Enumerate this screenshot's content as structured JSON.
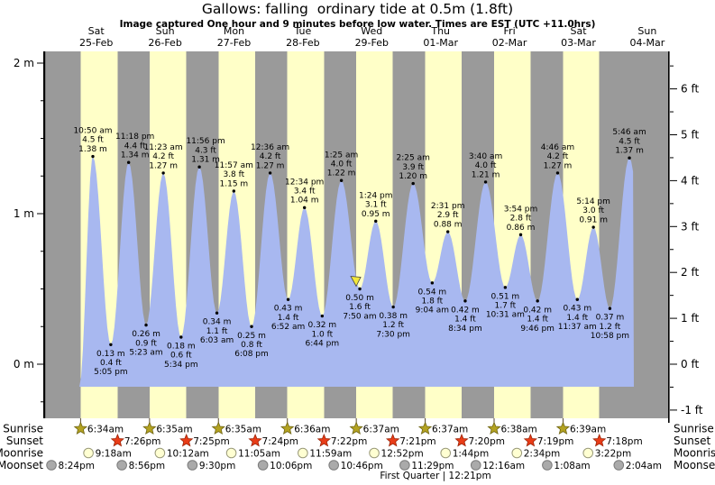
{
  "title": "Gallows: falling  ordinary tide at 0.5m (1.8ft)",
  "subtitle": "Image captured One hour and 9 minutes before low water. Times are EST (UTC +11.0hrs)",
  "chart_data": {
    "type": "area",
    "title": "Gallows: falling  ordinary tide at 0.5m (1.8ft)",
    "ylabel_left_unit": "m",
    "ylabel_right_unit": "ft",
    "y_axis_left_ticks": [
      "2 m",
      "1 m",
      "0 m"
    ],
    "y_axis_right_ticks": [
      "6 ft",
      "5 ft",
      "4 ft",
      "3 ft",
      "2 ft",
      "1 ft",
      "0 ft",
      "-1 ft"
    ],
    "ylim_m": [
      -0.35,
      2.08
    ],
    "days": [
      {
        "name": "Sat",
        "date": "25-Feb"
      },
      {
        "name": "Sun",
        "date": "26-Feb"
      },
      {
        "name": "Mon",
        "date": "27-Feb"
      },
      {
        "name": "Tue",
        "date": "28-Feb"
      },
      {
        "name": "Wed",
        "date": "29-Feb"
      },
      {
        "name": "Thu",
        "date": "01-Mar"
      },
      {
        "name": "Fri",
        "date": "02-Mar"
      },
      {
        "name": "Sat",
        "date": "03-Mar"
      },
      {
        "name": "Sun",
        "date": "04-Mar"
      }
    ],
    "tides": [
      {
        "day": 0,
        "type": "high",
        "time": "10:50 am",
        "ft": "4.5 ft",
        "m": "1.38 m"
      },
      {
        "day": 0,
        "type": "low",
        "m": "0.13 m",
        "ft": "0.4 ft",
        "time": "5:05 pm"
      },
      {
        "day": 0,
        "type": "high",
        "time": "11:18 pm",
        "ft": "4.4 ft",
        "m": "1.34 m"
      },
      {
        "day": 1,
        "type": "low",
        "m": "0.26 m",
        "ft": "0.9 ft",
        "time": "5:23 am"
      },
      {
        "day": 1,
        "type": "high",
        "time": "11:23 am",
        "ft": "4.2 ft",
        "m": "1.27 m"
      },
      {
        "day": 1,
        "type": "low",
        "m": "0.18 m",
        "ft": "0.6 ft",
        "time": "5:34 pm"
      },
      {
        "day": 1,
        "type": "high",
        "time": "11:56 pm",
        "ft": "4.3 ft",
        "m": "1.31 m"
      },
      {
        "day": 2,
        "type": "low",
        "m": "0.34 m",
        "ft": "1.1 ft",
        "time": "6:03 am"
      },
      {
        "day": 2,
        "type": "high",
        "time": "11:57 am",
        "ft": "3.8 ft",
        "m": "1.15 m"
      },
      {
        "day": 2,
        "type": "low",
        "m": "0.25 m",
        "ft": "0.8 ft",
        "time": "6:08 pm"
      },
      {
        "day": 3,
        "type": "high",
        "time": "12:36 am",
        "ft": "4.2 ft",
        "m": "1.27 m"
      },
      {
        "day": 3,
        "type": "low",
        "m": "0.43 m",
        "ft": "1.4 ft",
        "time": "6:52 am"
      },
      {
        "day": 3,
        "type": "high",
        "time": "12:34 pm",
        "ft": "3.4 ft",
        "m": "1.04 m"
      },
      {
        "day": 3,
        "type": "low",
        "m": "0.32 m",
        "ft": "1.0 ft",
        "time": "6:44 pm"
      },
      {
        "day": 4,
        "type": "high",
        "time": "1:25 am",
        "ft": "4.0 ft",
        "m": "1.22 m"
      },
      {
        "day": 4,
        "type": "low",
        "m": "0.50 m",
        "ft": "1.6 ft",
        "time": "7:50 am",
        "current": true
      },
      {
        "day": 4,
        "type": "high",
        "time": "1:24 pm",
        "ft": "3.1 ft",
        "m": "0.95 m"
      },
      {
        "day": 4,
        "type": "low",
        "m": "0.38 m",
        "ft": "1.2 ft",
        "time": "7:30 pm"
      },
      {
        "day": 5,
        "type": "high",
        "time": "2:25 am",
        "ft": "3.9 ft",
        "m": "1.20 m"
      },
      {
        "day": 5,
        "type": "low",
        "m": "0.54 m",
        "ft": "1.8 ft",
        "time": "9:04 am"
      },
      {
        "day": 5,
        "type": "high",
        "time": "2:31 pm",
        "ft": "2.9 ft",
        "m": "0.88 m"
      },
      {
        "day": 5,
        "type": "low",
        "m": "0.42 m",
        "ft": "1.4 ft",
        "time": "8:34 pm"
      },
      {
        "day": 6,
        "type": "high",
        "time": "3:40 am",
        "ft": "4.0 ft",
        "m": "1.21 m"
      },
      {
        "day": 6,
        "type": "low",
        "m": "0.51 m",
        "ft": "1.7 ft",
        "time": "10:31 am"
      },
      {
        "day": 6,
        "type": "high",
        "time": "3:54 pm",
        "ft": "2.8 ft",
        "m": "0.86 m"
      },
      {
        "day": 6,
        "type": "low",
        "m": "0.42 m",
        "ft": "1.4 ft",
        "time": "9:46 pm"
      },
      {
        "day": 7,
        "type": "high",
        "time": "4:46 am",
        "ft": "4.2 ft",
        "m": "1.27 m"
      },
      {
        "day": 7,
        "type": "low",
        "m": "0.43 m",
        "ft": "1.4 ft",
        "time": "11:37 am"
      },
      {
        "day": 7,
        "type": "high",
        "time": "5:14 pm",
        "ft": "3.0 ft",
        "m": "0.91 m"
      },
      {
        "day": 7,
        "type": "low",
        "m": "0.37 m",
        "ft": "1.2 ft",
        "time": "10:58 pm"
      },
      {
        "day": 8,
        "type": "high",
        "time": "5:46 am",
        "ft": "4.5 ft",
        "m": "1.37 m"
      }
    ]
  },
  "astro": {
    "row_labels": [
      "Sunrise",
      "Sunset",
      "Moonrise",
      "Moonset"
    ],
    "sunrise": [
      {
        "day": 0,
        "time": "6:34am"
      },
      {
        "day": 1,
        "time": "6:35am"
      },
      {
        "day": 2,
        "time": "6:35am"
      },
      {
        "day": 3,
        "time": "6:36am"
      },
      {
        "day": 4,
        "time": "6:37am"
      },
      {
        "day": 5,
        "time": "6:37am"
      },
      {
        "day": 6,
        "time": "6:38am"
      },
      {
        "day": 7,
        "time": "6:39am"
      }
    ],
    "sunset": [
      {
        "day": 0,
        "time": "7:26pm"
      },
      {
        "day": 1,
        "time": "7:25pm"
      },
      {
        "day": 2,
        "time": "7:24pm"
      },
      {
        "day": 3,
        "time": "7:22pm"
      },
      {
        "day": 4,
        "time": "7:21pm"
      },
      {
        "day": 5,
        "time": "7:20pm"
      },
      {
        "day": 6,
        "time": "7:19pm"
      },
      {
        "day": 7,
        "time": "7:18pm"
      }
    ],
    "moonrise": [
      {
        "day": 0,
        "time": "9:18am"
      },
      {
        "day": 1,
        "time": "10:12am"
      },
      {
        "day": 2,
        "time": "11:05am"
      },
      {
        "day": 3,
        "time": "11:59am"
      },
      {
        "day": 4,
        "time": "12:52pm"
      },
      {
        "day": 5,
        "time": "1:44pm"
      },
      {
        "day": 6,
        "time": "2:34pm"
      },
      {
        "day": 7,
        "time": "3:22pm"
      }
    ],
    "moonset": [
      {
        "day": -1,
        "time": "8:24pm"
      },
      {
        "day": 0,
        "time": "8:56pm"
      },
      {
        "day": 1,
        "time": "9:30pm"
      },
      {
        "day": 2,
        "time": "10:06pm"
      },
      {
        "day": 3,
        "time": "10:46pm"
      },
      {
        "day": 4,
        "time": "11:29pm"
      },
      {
        "day": 6,
        "time": "12:16am"
      },
      {
        "day": 7,
        "time": "1:08am"
      },
      {
        "day": 8,
        "time": "2:04am"
      }
    ],
    "moon_phase": "First Quarter | 12:21pm"
  },
  "colors": {
    "night_band": "#9a9a9a",
    "day_band": "#ffffc8",
    "water": "#a8b8f0",
    "day_label_red": "#ee2b22",
    "sunrise_star": "#b3a221",
    "sunset_star": "#e93c17",
    "moonrise_circle": "#ffffd2",
    "moonset_circle": "#aaaaaa",
    "current_marker": "#f2e73b"
  }
}
